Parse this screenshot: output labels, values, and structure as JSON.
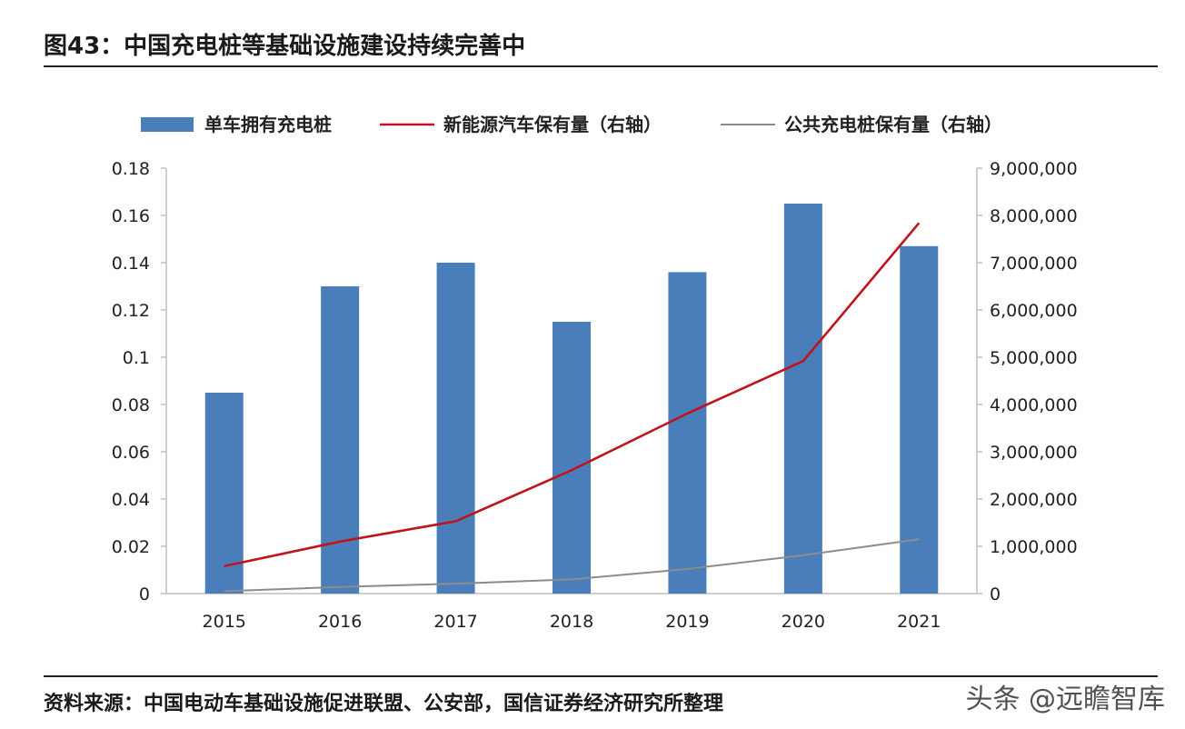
{
  "header": {
    "title": "图43：中国充电桩等基础设施建设持续完善中"
  },
  "footer": {
    "source": "资料来源：中国电动车基础设施促进联盟、公安部，国信证券经济研究所整理",
    "watermark": "头条 @远瞻智库"
  },
  "colors": {
    "bar": "#4a7ebb",
    "ev_line": "#c0141c",
    "public_line": "#8c8c8c",
    "axis": "#bfbfbf"
  },
  "chart_data": {
    "type": "bar",
    "categories": [
      "2015",
      "2016",
      "2017",
      "2018",
      "2019",
      "2020",
      "2021"
    ],
    "series": [
      {
        "name": "单车拥有充电桩",
        "type": "bar",
        "axis": "left",
        "values": [
          0.085,
          0.13,
          0.14,
          0.115,
          0.136,
          0.165,
          0.147
        ]
      },
      {
        "name": "新能源汽车保有量（右轴）",
        "type": "line",
        "axis": "right",
        "values": [
          580000,
          1100000,
          1530000,
          2610000,
          3810000,
          4920000,
          7840000
        ]
      },
      {
        "name": "公共充电桩保有量（右轴）",
        "type": "line",
        "axis": "right",
        "values": [
          50000,
          140000,
          210000,
          300000,
          520000,
          810000,
          1150000
        ]
      }
    ],
    "left_axis": {
      "ylim": [
        0,
        0.18
      ],
      "ticks": [
        "0",
        "0.02",
        "0.04",
        "0.06",
        "0.08",
        "0.1",
        "0.12",
        "0.14",
        "0.16",
        "0.18"
      ]
    },
    "right_axis": {
      "ylim": [
        0,
        9000000
      ],
      "ticks": [
        "0",
        "1,000,000",
        "2,000,000",
        "3,000,000",
        "4,000,000",
        "5,000,000",
        "6,000,000",
        "7,000,000",
        "8,000,000",
        "9,000,000"
      ]
    },
    "legend_position": "top",
    "grid": false
  }
}
